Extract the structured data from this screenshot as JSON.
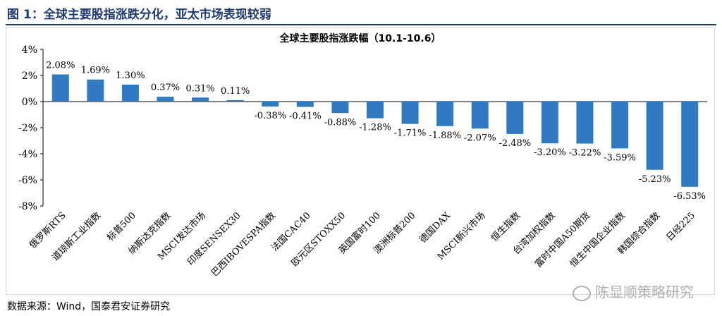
{
  "figure_title": "图 1：全球主要股指涨跌分化，亚太市场表现较弱",
  "source": "数据来源：Wind，国泰君安证券研究",
  "watermark": "陈显顺策略研究",
  "colors": {
    "bar": "#2f7ac1",
    "title": "#1f3a70",
    "axis": "#000000",
    "frame": "#d9d9d9"
  },
  "chart_data": {
    "type": "bar",
    "title": "全球主要股指涨跌幅（10.1-10.6）",
    "xlabel": "",
    "ylabel": "",
    "ylim": [
      -8,
      4
    ],
    "yticks": [
      "4%",
      "2%",
      "0%",
      "-2%",
      "-4%",
      "-6%",
      "-8%"
    ],
    "ytick_values": [
      4,
      2,
      0,
      -2,
      -4,
      -6,
      -8
    ],
    "grid": false,
    "categories": [
      "俄罗斯RTS",
      "道琼斯工业指数",
      "标普500",
      "纳斯达克指数",
      "MSCI发达市场",
      "印度SENSEX30",
      "巴西IBOVESPA指数",
      "法国CAC40",
      "欧元区STOXX50",
      "英国富时100",
      "澳洲标普200",
      "德国DAX",
      "MSCI新兴市场",
      "恒生指数",
      "台湾加权指数",
      "富时中国A50期货",
      "恒生中国企业指数",
      "韩国综合指数",
      "日经225"
    ],
    "values": [
      2.08,
      1.69,
      1.3,
      0.37,
      0.31,
      0.11,
      -0.38,
      -0.41,
      -0.88,
      -1.28,
      -1.71,
      -1.88,
      -2.07,
      -2.48,
      -3.2,
      -3.22,
      -3.59,
      -5.23,
      -6.53
    ],
    "labels": [
      "2.08%",
      "1.69%",
      "1.30%",
      "0.37%",
      "0.31%",
      "0.11%",
      "-0.38%",
      "-0.41%",
      "-0.88%",
      "-1.28%",
      "-1.71%",
      "-1.88%",
      "-2.07%",
      "-2.48%",
      "-3.20%",
      "-3.22%",
      "-3.59%",
      "-5.23%",
      "-6.53%"
    ]
  }
}
